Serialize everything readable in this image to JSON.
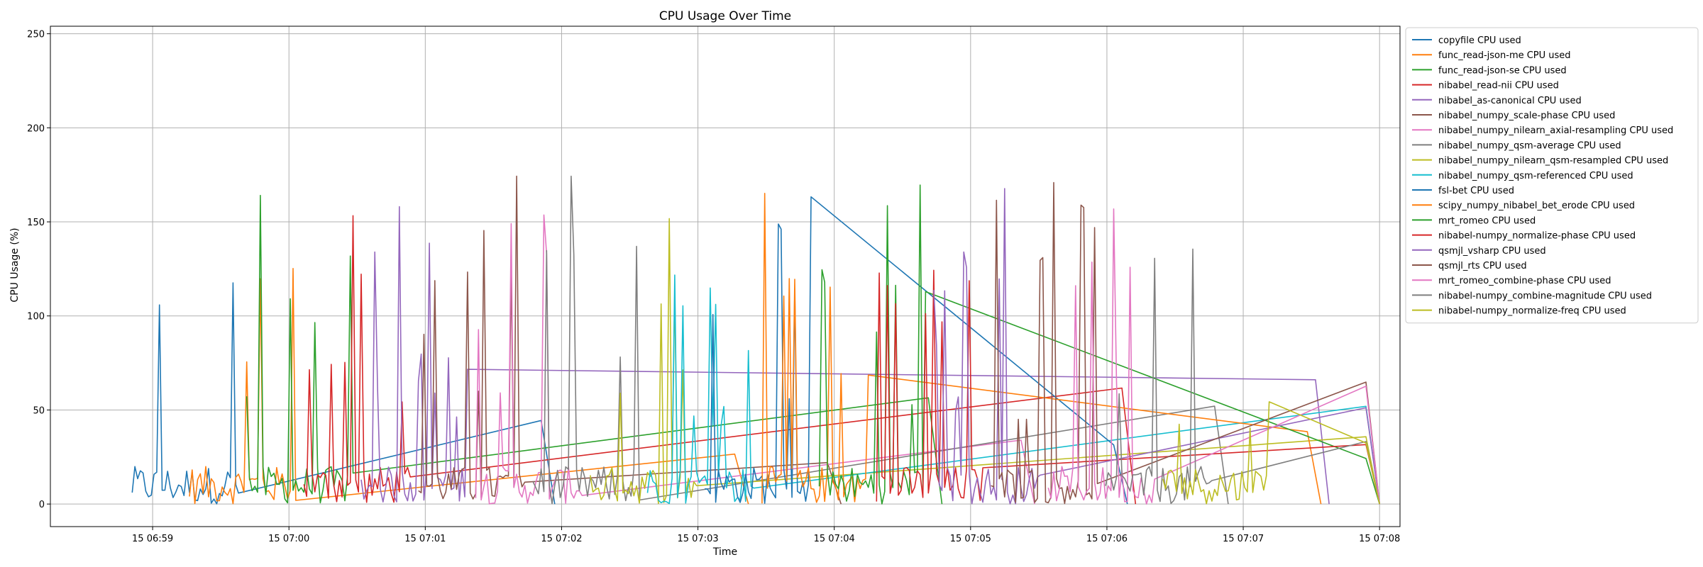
{
  "chart_data": {
    "type": "line",
    "title": "CPU Usage Over Time",
    "xlabel": "Time",
    "ylabel": "CPU Usage (%)",
    "x_ticks": [
      "15 06:59",
      "15 07:00",
      "15 07:01",
      "15 07:02",
      "15 07:03",
      "15 07:04",
      "15 07:05",
      "15 07:06",
      "15 07:07",
      "15 07:08"
    ],
    "x_range_minutes": [
      -0.75,
      9.15
    ],
    "ylim": [
      -12,
      254
    ],
    "y_ticks": [
      0,
      50,
      100,
      150,
      200,
      250
    ],
    "grid": true,
    "legend": "upper-right-outside",
    "series": [
      {
        "name": "copyfile CPU used",
        "color": "#1f77b4"
      },
      {
        "name": "func_read-json-me CPU used",
        "color": "#ff7f0e"
      },
      {
        "name": "func_read-json-se CPU used",
        "color": "#2ca02c"
      },
      {
        "name": "nibabel_read-nii CPU used",
        "color": "#d62728"
      },
      {
        "name": "nibabel_as-canonical CPU used",
        "color": "#9467bd"
      },
      {
        "name": "nibabel_numpy_scale-phase CPU used",
        "color": "#8c564b"
      },
      {
        "name": "nibabel_numpy_nilearn_axial-resampling CPU used",
        "color": "#e377c2"
      },
      {
        "name": "nibabel_numpy_qsm-average CPU used",
        "color": "#7f7f7f"
      },
      {
        "name": "nibabel_numpy_nilearn_qsm-resampled CPU used",
        "color": "#bcbd22"
      },
      {
        "name": "nibabel_numpy_qsm-referenced CPU used",
        "color": "#17becf"
      },
      {
        "name": "fsl-bet CPU used",
        "color": "#1f77b4"
      },
      {
        "name": "scipy_numpy_nibabel_bet_erode CPU used",
        "color": "#ff7f0e"
      },
      {
        "name": "mrt_romeo CPU used",
        "color": "#2ca02c"
      },
      {
        "name": "nibabel-numpy_normalize-phase CPU used",
        "color": "#d62728"
      },
      {
        "name": "qsmjl_vsharp CPU used",
        "color": "#9467bd"
      },
      {
        "name": "qsmjl_rts CPU used",
        "color": "#8c564b"
      },
      {
        "name": "mrt_romeo_combine-phase CPU used",
        "color": "#e377c2"
      },
      {
        "name": "nibabel-numpy_combine-magnitude CPU used",
        "color": "#7f7f7f"
      },
      {
        "name": "nibabel-numpy_normalize-freq CPU used",
        "color": "#bcbd22"
      }
    ]
  }
}
